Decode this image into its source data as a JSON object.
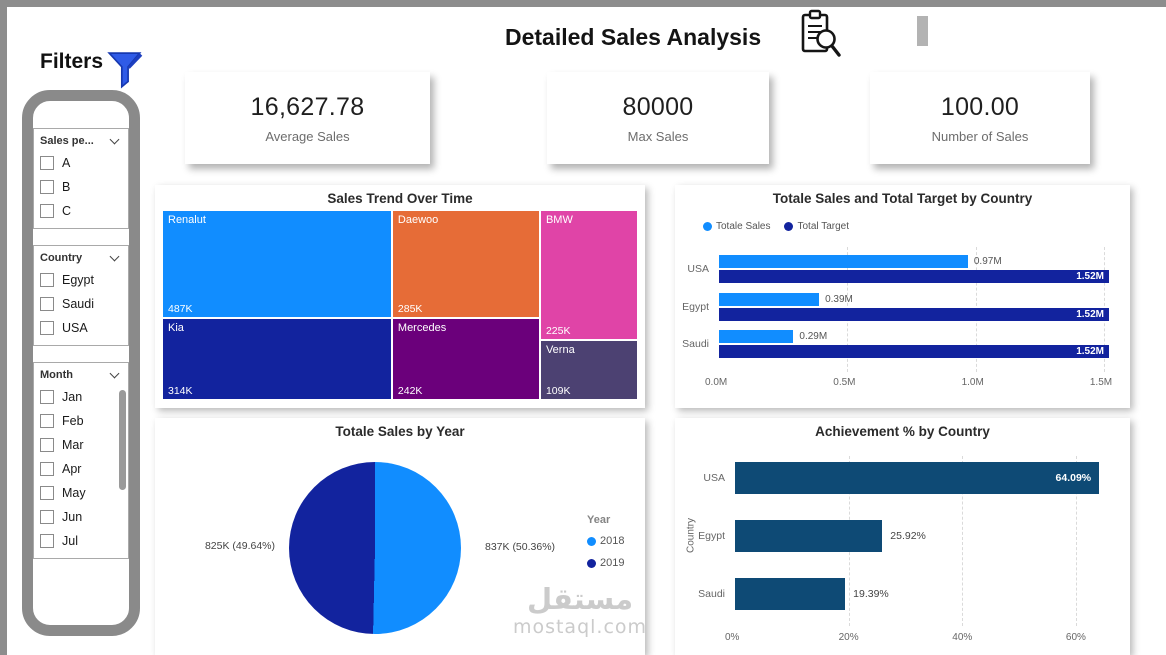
{
  "header": {
    "title": "Detailed Sales Analysis"
  },
  "filters": {
    "title": "Filters",
    "groups": [
      {
        "label": "Sales pe...",
        "options": [
          "A",
          "B",
          "C"
        ]
      },
      {
        "label": "Country",
        "options": [
          "Egypt",
          "Saudi",
          "USA"
        ]
      },
      {
        "label": "Month",
        "options": [
          "Jan",
          "Feb",
          "Mar",
          "Apr",
          "May",
          "Jun",
          "Jul"
        ]
      }
    ]
  },
  "kpis": [
    {
      "value": "16,627.78",
      "label": "Average Sales"
    },
    {
      "value": "80000",
      "label": "Max Sales"
    },
    {
      "value": "100.00",
      "label": "Number of Sales"
    }
  ],
  "chart_data": [
    {
      "type": "treemap",
      "title": "Sales Trend Over Time",
      "items": [
        {
          "name": "Renalut",
          "value": "487K",
          "color": "#118DFF"
        },
        {
          "name": "Daewoo",
          "value": "285K",
          "color": "#E66C37"
        },
        {
          "name": "BMW",
          "value": "225K",
          "color": "#E044A7"
        },
        {
          "name": "Kia",
          "value": "314K",
          "color": "#12239E"
        },
        {
          "name": "Mercedes",
          "value": "242K",
          "color": "#6B007B"
        },
        {
          "name": "Verna",
          "value": "109K",
          "color": "#4C4172"
        }
      ]
    },
    {
      "type": "bar",
      "title": "Totale Sales and Total Target by Country",
      "categories": [
        "USA",
        "Egypt",
        "Saudi"
      ],
      "series": [
        {
          "name": "Totale Sales",
          "color": "#118DFF",
          "values": [
            0.97,
            0.39,
            0.29
          ],
          "labels": [
            "0.97M",
            "0.39M",
            "0.29M"
          ]
        },
        {
          "name": "Total Target",
          "color": "#12239E",
          "values": [
            1.52,
            1.52,
            1.52
          ],
          "labels": [
            "1.52M",
            "1.52M",
            "1.52M"
          ]
        }
      ],
      "xlim": [
        0,
        1.52
      ],
      "x_tick_values": [
        0,
        0.5,
        1.0,
        1.5
      ],
      "x_ticks": [
        "0.0M",
        "0.5M",
        "1.0M",
        "1.5M"
      ],
      "legend_position": "top-left",
      "grid": true
    },
    {
      "type": "pie",
      "title": "Totale Sales by Year",
      "legend_title": "Year",
      "slices": [
        {
          "name": "2018",
          "value": "837K",
          "pct": 50.36,
          "label": "837K (50.36%)",
          "color": "#118DFF"
        },
        {
          "name": "2019",
          "value": "825K",
          "pct": 49.64,
          "label": "825K (49.64%)",
          "color": "#12239E"
        }
      ],
      "legend_position": "right"
    },
    {
      "type": "bar",
      "title": "Achievement % by Country",
      "ylabel": "Country",
      "categories": [
        "USA",
        "Egypt",
        "Saudi"
      ],
      "values": [
        64.09,
        25.92,
        19.39
      ],
      "labels": [
        "64.09%",
        "25.92%",
        "19.39%"
      ],
      "color": "#0E4A75",
      "xlim": [
        0,
        66
      ],
      "x_tick_values": [
        0,
        20,
        40,
        60
      ],
      "x_ticks": [
        "0%",
        "20%",
        "40%",
        "60%"
      ],
      "grid": true
    }
  ],
  "watermark": {
    "line1": "مستقل",
    "line2": "mostaql.com"
  }
}
